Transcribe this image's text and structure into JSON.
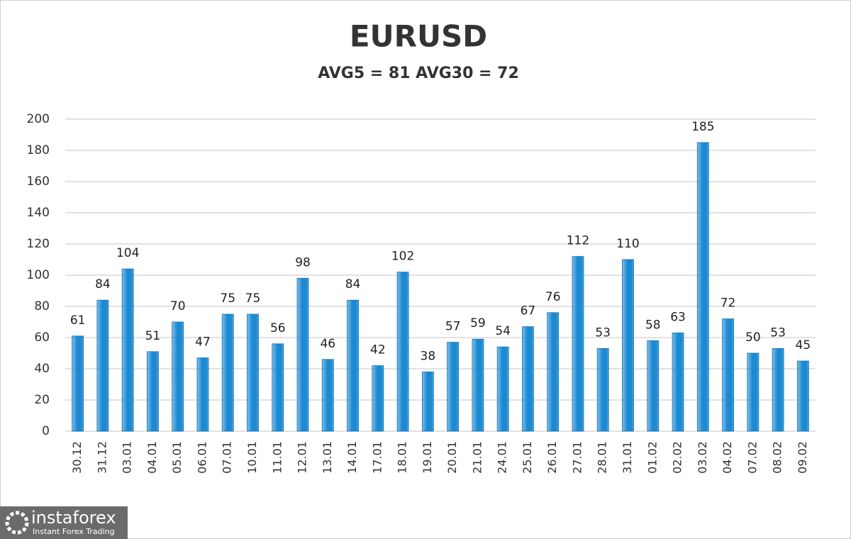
{
  "chart_data": {
    "type": "bar",
    "title": "EURUSD",
    "subtitle": "AVG5 = 81 AVG30 = 72",
    "categories": [
      "30.12",
      "31.12",
      "03.01",
      "04.01",
      "05.01",
      "06.01",
      "07.01",
      "10.01",
      "11.01",
      "12.01",
      "13.01",
      "14.01",
      "17.01",
      "18.01",
      "19.01",
      "20.01",
      "21.01",
      "24.01",
      "25.01",
      "26.01",
      "27.01",
      "28.01",
      "31.01",
      "01.02",
      "02.02",
      "03.02",
      "04.02",
      "07.02",
      "08.02",
      "09.02"
    ],
    "values": [
      61,
      84,
      104,
      51,
      70,
      47,
      75,
      75,
      56,
      98,
      46,
      84,
      42,
      102,
      38,
      57,
      59,
      54,
      67,
      76,
      112,
      53,
      110,
      58,
      63,
      185,
      72,
      50,
      53,
      45
    ],
    "color": "#1b8ad3",
    "ylim": [
      0,
      200
    ],
    "yticks": [
      0,
      20,
      40,
      60,
      80,
      100,
      120,
      140,
      160,
      180,
      200
    ],
    "grid": true
  },
  "watermark": {
    "brand": "instaforex",
    "tagline": "Instant Forex Trading"
  }
}
